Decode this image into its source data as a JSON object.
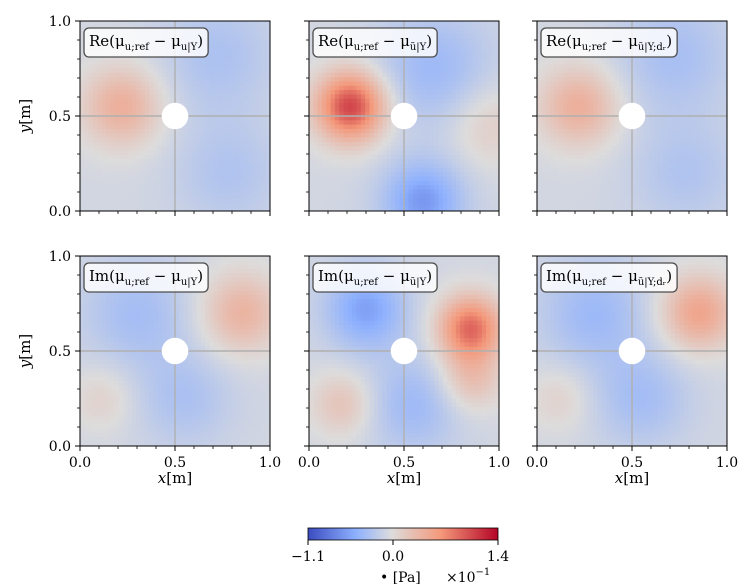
{
  "chart_data": {
    "type": "heatmap",
    "layout": "2x3 grid of field plots",
    "colormap": "coolwarm",
    "colorbar": {
      "min_label": "−1.1",
      "mid_label": "0.0",
      "max_label": "1.4",
      "vmin": -1.1,
      "vmax": 1.4,
      "unit_label": "• [Pa]",
      "scale_label": "×10",
      "scale_exponent": "−1"
    },
    "x_axis": {
      "label": "x",
      "unit": "[m]",
      "range": [
        0.0,
        1.0
      ],
      "ticks": [
        "0.0",
        "0.5",
        "1.0"
      ]
    },
    "y_axis": {
      "label": "y",
      "unit": "[m]",
      "range": [
        0.0,
        1.0
      ],
      "ticks": [
        "0.0",
        "0.5",
        "1.0"
      ]
    },
    "obstacle": {
      "center": [
        0.5,
        0.5
      ],
      "radius": 0.07,
      "color": "#ffffff"
    },
    "gridlines": {
      "x": 0.5,
      "y": 0.5
    },
    "panels": [
      {
        "id": "re-1",
        "part": "Re",
        "subscript": "u|Y",
        "label": {
          "prefix": "Re(μ",
          "sub1": "u;ref",
          "middle": " − μ",
          "sub2": "u|Y",
          "suffix": ")"
        },
        "blobs": [
          {
            "x": 0.22,
            "y": 0.55,
            "s": 0.15,
            "a": 0.55
          },
          {
            "x": 0.72,
            "y": 0.82,
            "s": 0.22,
            "a": -0.25
          },
          {
            "x": 0.78,
            "y": 0.2,
            "s": 0.2,
            "a": -0.22
          }
        ]
      },
      {
        "id": "re-2",
        "part": "Re",
        "subscript": "ũ|Y",
        "label": {
          "prefix": "Re(μ",
          "sub1": "u;ref",
          "middle": " − μ",
          "sub2": "ũ|Y",
          "suffix": ")"
        },
        "blobs": [
          {
            "x": 0.22,
            "y": 0.55,
            "s": 0.13,
            "a": 1.2
          },
          {
            "x": 0.65,
            "y": 0.75,
            "s": 0.22,
            "a": -0.35
          },
          {
            "x": 0.6,
            "y": 0.05,
            "s": 0.15,
            "a": -0.6
          },
          {
            "x": 0.95,
            "y": 0.45,
            "s": 0.15,
            "a": 0.25
          }
        ]
      },
      {
        "id": "re-3",
        "part": "Re",
        "subscript": "ũ|Y;dr",
        "label": {
          "prefix": "Re(μ",
          "sub1": "u;ref",
          "middle": " − μ",
          "sub2": "ũ|Y;dᵣ",
          "suffix": ")"
        },
        "blobs": [
          {
            "x": 0.22,
            "y": 0.55,
            "s": 0.15,
            "a": 0.55
          },
          {
            "x": 0.72,
            "y": 0.82,
            "s": 0.22,
            "a": -0.28
          },
          {
            "x": 0.78,
            "y": 0.2,
            "s": 0.2,
            "a": -0.22
          }
        ]
      },
      {
        "id": "im-1",
        "part": "Im",
        "subscript": "u|Y",
        "label": {
          "prefix": "Im(μ",
          "sub1": "u;ref",
          "middle": " − μ",
          "sub2": "u|Y",
          "suffix": ")"
        },
        "blobs": [
          {
            "x": 0.85,
            "y": 0.7,
            "s": 0.15,
            "a": 0.5
          },
          {
            "x": 0.3,
            "y": 0.7,
            "s": 0.2,
            "a": -0.3
          },
          {
            "x": 0.12,
            "y": 0.25,
            "s": 0.12,
            "a": 0.2
          },
          {
            "x": 0.55,
            "y": 0.25,
            "s": 0.18,
            "a": -0.25
          }
        ]
      },
      {
        "id": "im-2",
        "part": "Im",
        "subscript": "ũ|Y",
        "label": {
          "prefix": "Im(μ",
          "sub1": "u;ref",
          "middle": " − μ",
          "sub2": "ũ|Y",
          "suffix": ")"
        },
        "blobs": [
          {
            "x": 0.85,
            "y": 0.62,
            "s": 0.12,
            "a": 1.0
          },
          {
            "x": 0.85,
            "y": 0.35,
            "s": 0.12,
            "a": 0.4
          },
          {
            "x": 0.3,
            "y": 0.72,
            "s": 0.15,
            "a": -0.55
          },
          {
            "x": 0.18,
            "y": 0.22,
            "s": 0.12,
            "a": 0.35
          },
          {
            "x": 0.55,
            "y": 0.22,
            "s": 0.18,
            "a": -0.35
          }
        ]
      },
      {
        "id": "im-3",
        "part": "Im",
        "subscript": "ũ|Y;dr",
        "label": {
          "prefix": "Im(μ",
          "sub1": "u;ref",
          "middle": " − μ",
          "sub2": "ũ|Y;dᵣ",
          "suffix": ")"
        },
        "blobs": [
          {
            "x": 0.85,
            "y": 0.7,
            "s": 0.14,
            "a": 0.65
          },
          {
            "x": 0.3,
            "y": 0.7,
            "s": 0.2,
            "a": -0.35
          },
          {
            "x": 0.12,
            "y": 0.25,
            "s": 0.12,
            "a": 0.2
          },
          {
            "x": 0.55,
            "y": 0.25,
            "s": 0.18,
            "a": -0.3
          }
        ]
      }
    ]
  }
}
